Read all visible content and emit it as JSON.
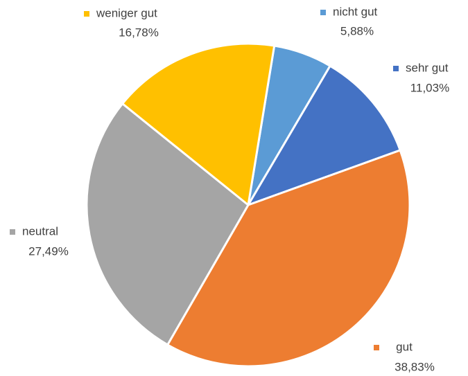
{
  "chart_data": {
    "type": "pie",
    "categories": [
      "nicht gut",
      "sehr gut",
      "gut",
      "neutral",
      "weniger gut"
    ],
    "values": [
      5.88,
      11.03,
      38.83,
      27.49,
      16.78
    ],
    "value_labels": [
      "5,88%",
      "11,03%",
      "38,83%",
      "27,49%",
      "16,78%"
    ],
    "colors": [
      "#5b9bd5",
      "#4472c4",
      "#ed7d31",
      "#a5a5a5",
      "#ffc000"
    ]
  }
}
